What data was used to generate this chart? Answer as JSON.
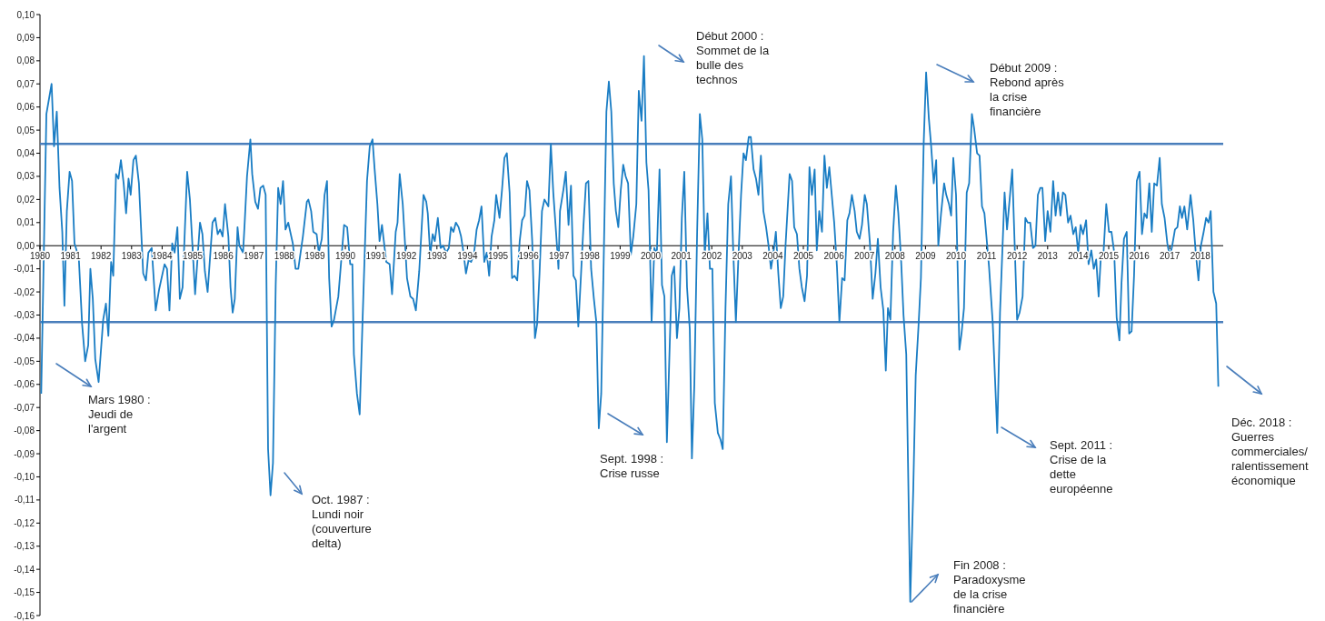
{
  "chart_data": {
    "type": "line",
    "xlim": [
      1980,
      2018.75
    ],
    "ylim": [
      -0.16,
      0.1
    ],
    "xticks": [
      1980,
      1981,
      1982,
      1983,
      1984,
      1985,
      1986,
      1987,
      1988,
      1989,
      1990,
      1991,
      1992,
      1993,
      1994,
      1995,
      1996,
      1997,
      1998,
      1999,
      2000,
      2001,
      2002,
      2003,
      2004,
      2005,
      2006,
      2007,
      2008,
      2009,
      2010,
      2011,
      2012,
      2013,
      2014,
      2015,
      2016,
      2017,
      2018
    ],
    "yticks": [
      {
        "value": 0.1,
        "label": "0,10"
      },
      {
        "value": 0.09,
        "label": "0,09"
      },
      {
        "value": 0.08,
        "label": "0,08"
      },
      {
        "value": 0.07,
        "label": "0,07"
      },
      {
        "value": 0.06,
        "label": "0,06"
      },
      {
        "value": 0.05,
        "label": "0,05"
      },
      {
        "value": 0.04,
        "label": "0,04"
      },
      {
        "value": 0.03,
        "label": "0,03"
      },
      {
        "value": 0.02,
        "label": "0,02"
      },
      {
        "value": 0.01,
        "label": "0,01"
      },
      {
        "value": 0,
        "label": "0,00"
      },
      {
        "value": -0.01,
        "label": "-0,01"
      },
      {
        "value": -0.02,
        "label": "-0,02"
      },
      {
        "value": -0.03,
        "label": "-0,03"
      },
      {
        "value": -0.04,
        "label": "-0,04"
      },
      {
        "value": -0.05,
        "label": "-0,05"
      },
      {
        "value": -0.06,
        "label": "-0,06"
      },
      {
        "value": -0.07,
        "label": "-0,07"
      },
      {
        "value": -0.08,
        "label": "-0,08"
      },
      {
        "value": -0.09,
        "label": "-0,09"
      },
      {
        "value": -0.1,
        "label": "-0,10"
      },
      {
        "value": -0.11,
        "label": "-0,11"
      },
      {
        "value": -0.12,
        "label": "-0,12"
      },
      {
        "value": -0.13,
        "label": "-0,13"
      },
      {
        "value": -0.14,
        "label": "-0,14"
      },
      {
        "value": -0.15,
        "label": "-0,15"
      },
      {
        "value": -0.16,
        "label": "-0,16"
      }
    ],
    "grid": false,
    "marker": "none",
    "line_style": "solid",
    "ref_lines": [
      {
        "axis": "y",
        "value": 0.044,
        "color": "#4a7ebb"
      },
      {
        "axis": "y",
        "value": -0.033,
        "color": "#4a7ebb"
      }
    ],
    "annotations": [
      "Mars 1980 :\nJeudi de\nl'argent",
      "Oct. 1987 :\nLundi noir\n(couverture\ndelta)",
      "Sept. 1998 :\nCrise russe",
      "Début 2000 :\nSommet de la\nbulle des\ntechnos",
      "Fin 2008 :\nParadoxysme\nde la crise\nfinancière",
      "Début 2009 :\nRebond après\nla crise\nfinancière",
      "Sept. 2011 :\nCrise de la\ndette\neuropéenne",
      "Déc. 2018 :\nGuerres\ncommerciales/\nralentissement\néconomique"
    ],
    "series": [
      {
        "color": "#1a7dc4",
        "x": [
          1980.04,
          1980.21,
          1980.38,
          1980.46,
          1980.55,
          1980.64,
          1980.73,
          1980.8,
          1980.88,
          1980.97,
          1981.05,
          1981.13,
          1981.27,
          1981.38,
          1981.48,
          1981.58,
          1981.65,
          1981.73,
          1981.81,
          1981.92,
          1982.07,
          1982.16,
          1982.24,
          1982.33,
          1982.4,
          1982.49,
          1982.57,
          1982.65,
          1982.74,
          1982.82,
          1982.9,
          1982.97,
          1983.06,
          1983.14,
          1983.24,
          1983.38,
          1983.47,
          1983.55,
          1983.66,
          1983.79,
          1983.9,
          1984.08,
          1984.16,
          1984.24,
          1984.33,
          1984.41,
          1984.5,
          1984.58,
          1984.67,
          1984.82,
          1984.91,
          1985.08,
          1985.24,
          1985.32,
          1985.4,
          1985.49,
          1985.65,
          1985.74,
          1985.82,
          1985.9,
          1985.98,
          1986.06,
          1986.17,
          1986.24,
          1986.31,
          1986.38,
          1986.47,
          1986.53,
          1986.65,
          1986.7,
          1986.78,
          1986.89,
          1986.95,
          1987.05,
          1987.14,
          1987.22,
          1987.31,
          1987.39,
          1987.47,
          1987.55,
          1987.63,
          1987.72,
          1987.8,
          1987.88,
          1987.96,
          1988.04,
          1988.13,
          1988.28,
          1988.37,
          1988.46,
          1988.61,
          1988.74,
          1988.79,
          1988.88,
          1988.95,
          1989.06,
          1989.13,
          1989.23,
          1989.32,
          1989.4,
          1989.47,
          1989.55,
          1989.63,
          1989.77,
          1989.96,
          1990.06,
          1990.16,
          1990.23,
          1990.28,
          1990.38,
          1990.47,
          1990.56,
          1990.71,
          1990.8,
          1990.89,
          1990.96,
          1991.05,
          1991.12,
          1991.2,
          1991.34,
          1991.45,
          1991.53,
          1991.65,
          1991.71,
          1991.78,
          1991.88,
          1992.02,
          1992.13,
          1992.22,
          1992.31,
          1992.42,
          1992.56,
          1992.65,
          1992.7,
          1992.78,
          1992.86,
          1992.93,
          1993.03,
          1993.12,
          1993.2,
          1993.3,
          1993.39,
          1993.46,
          1993.54,
          1993.62,
          1993.71,
          1993.79,
          1993.87,
          1993.95,
          1994.04,
          1994.12,
          1994.21,
          1994.3,
          1994.38,
          1994.46,
          1994.55,
          1994.63,
          1994.71,
          1994.79,
          1994.88,
          1994.94,
          1995.05,
          1995.13,
          1995.21,
          1995.29,
          1995.38,
          1995.46,
          1995.54,
          1995.63,
          1995.71,
          1995.79,
          1995.87,
          1995.95,
          1996.03,
          1996.12,
          1996.21,
          1996.28,
          1996.36,
          1996.44,
          1996.52,
          1996.65,
          1996.73,
          1996.81,
          1996.9,
          1996.98,
          1997.03,
          1997.14,
          1997.22,
          1997.31,
          1997.39,
          1997.47,
          1997.55,
          1997.63,
          1997.72,
          1997.8,
          1997.88,
          1997.96,
          1998.05,
          1998.14,
          1998.22,
          1998.3,
          1998.38,
          1998.46,
          1998.55,
          1998.63,
          1998.71,
          1998.79,
          1998.86,
          1998.94,
          1999.02,
          1999.1,
          1999.18,
          1999.26,
          1999.35,
          1999.43,
          1999.53,
          1999.61,
          1999.7,
          1999.78,
          1999.86,
          1999.93,
          2000.03,
          2000.12,
          2000.2,
          2000.29,
          2000.37,
          2000.45,
          2000.53,
          2000.69,
          2000.77,
          2000.86,
          2000.94,
          2001.02,
          2001.1,
          2001.19,
          2001.28,
          2001.35,
          2001.43,
          2001.52,
          2001.61,
          2001.69,
          2001.77,
          2001.86,
          2001.94,
          2002.02,
          2002.1,
          2002.2,
          2002.29,
          2002.36,
          2002.45,
          2002.54,
          2002.63,
          2002.7,
          2002.79,
          2002.87,
          2002.96,
          2003.04,
          2003.12,
          2003.21,
          2003.28,
          2003.37,
          2003.45,
          2003.53,
          2003.61,
          2003.69,
          2003.78,
          2003.86,
          2003.94,
          2004.02,
          2004.1,
          2004.18,
          2004.26,
          2004.34,
          2004.42,
          2004.55,
          2004.63,
          2004.7,
          2004.79,
          2004.87,
          2004.95,
          2005.04,
          2005.12,
          2005.2,
          2005.28,
          2005.37,
          2005.44,
          2005.52,
          2005.61,
          2005.69,
          2005.77,
          2005.85,
          2006.01,
          2006.1,
          2006.18,
          2006.27,
          2006.35,
          2006.44,
          2006.51,
          2006.59,
          2006.68,
          2006.75,
          2006.84,
          2006.92,
          2007.01,
          2007.08,
          2007.18,
          2007.27,
          2007.36,
          2007.44,
          2007.53,
          2007.62,
          2007.7,
          2007.77,
          2007.85,
          2007.94,
          2008.03,
          2008.11,
          2008.2,
          2008.28,
          2008.37,
          2008.5,
          2008.6,
          2008.68,
          2008.77,
          2008.85,
          2008.94,
          2009.02,
          2009.11,
          2009.18,
          2009.27,
          2009.35,
          2009.42,
          2009.51,
          2009.61,
          2009.68,
          2009.77,
          2009.84,
          2009.91,
          2010.0,
          2010.11,
          2010.18,
          2010.26,
          2010.35,
          2010.43,
          2010.52,
          2010.59,
          2010.69,
          2010.77,
          2010.85,
          2010.93,
          2011.08,
          2011.2,
          2011.35,
          2011.44,
          2011.59,
          2011.67,
          2011.84,
          2012.0,
          2012.08,
          2012.18,
          2012.27,
          2012.35,
          2012.43,
          2012.52,
          2012.6,
          2012.68,
          2012.76,
          2012.83,
          2012.92,
          2013.0,
          2013.09,
          2013.18,
          2013.26,
          2013.34,
          2013.42,
          2013.5,
          2013.58,
          2013.67,
          2013.75,
          2013.84,
          2013.92,
          2014.0,
          2014.08,
          2014.16,
          2014.26,
          2014.34,
          2014.43,
          2014.51,
          2014.59,
          2014.67,
          2014.75,
          2014.83,
          2014.92,
          2015.01,
          2015.09,
          2015.18,
          2015.26,
          2015.35,
          2015.42,
          2015.5,
          2015.59,
          2015.67,
          2015.75,
          2015.83,
          2015.92,
          2016.01,
          2016.09,
          2016.17,
          2016.25,
          2016.33,
          2016.41,
          2016.49,
          2016.58,
          2016.67,
          2016.74,
          2016.83,
          2016.92,
          2017.0,
          2017.08,
          2017.17,
          2017.25,
          2017.33,
          2017.4,
          2017.48,
          2017.57,
          2017.68,
          2017.77,
          2017.85,
          2017.94,
          2018.02,
          2018.11,
          2018.19,
          2018.27,
          2018.34,
          2018.43,
          2018.52,
          2018.59
        ],
        "values": [
          -0.064,
          0.057,
          0.07,
          0.043,
          0.058,
          0.025,
          0.006,
          -0.026,
          0.015,
          0.032,
          0.028,
          0.001,
          -0.005,
          -0.034,
          -0.05,
          -0.043,
          -0.01,
          -0.023,
          -0.049,
          -0.059,
          -0.032,
          -0.025,
          -0.039,
          -0.007,
          -0.013,
          0.031,
          0.029,
          0.037,
          0.027,
          0.014,
          0.029,
          0.022,
          0.037,
          0.039,
          0.027,
          -0.012,
          -0.015,
          -0.003,
          -0.001,
          -0.028,
          -0.019,
          -0.008,
          -0.01,
          -0.028,
          0.001,
          -0.003,
          0.008,
          -0.023,
          -0.018,
          0.032,
          0.02,
          -0.021,
          0.01,
          0.005,
          -0.011,
          -0.02,
          0.01,
          0.012,
          0.005,
          0.007,
          0.004,
          0.018,
          0.004,
          -0.018,
          -0.029,
          -0.023,
          0.008,
          0.0,
          -0.003,
          0.009,
          0.03,
          0.046,
          0.031,
          0.019,
          0.016,
          0.025,
          0.026,
          0.022,
          -0.088,
          -0.108,
          -0.094,
          -0.017,
          0.025,
          0.018,
          0.028,
          0.007,
          0.01,
          0.001,
          -0.01,
          -0.01,
          0.004,
          0.019,
          0.02,
          0.015,
          0.006,
          0.005,
          -0.003,
          0.003,
          0.022,
          0.028,
          -0.014,
          -0.035,
          -0.032,
          -0.022,
          0.009,
          0.008,
          -0.008,
          -0.008,
          -0.047,
          -0.064,
          -0.073,
          -0.034,
          0.028,
          0.043,
          0.046,
          0.033,
          0.018,
          0.002,
          0.009,
          -0.007,
          -0.008,
          -0.021,
          0.006,
          0.01,
          0.031,
          0.018,
          -0.014,
          -0.022,
          -0.023,
          -0.028,
          -0.011,
          0.022,
          0.019,
          0.014,
          -0.004,
          0.005,
          0.002,
          0.012,
          -0.001,
          0.0,
          -0.003,
          -0.001,
          0.008,
          0.006,
          0.01,
          0.008,
          0.004,
          -0.003,
          -0.012,
          -0.006,
          -0.007,
          -0.004,
          0.007,
          0.011,
          0.017,
          -0.007,
          -0.003,
          -0.013,
          0.004,
          0.011,
          0.022,
          0.012,
          0.024,
          0.038,
          0.04,
          0.023,
          -0.014,
          -0.013,
          -0.015,
          0.002,
          0.011,
          0.013,
          0.028,
          0.024,
          0.002,
          -0.04,
          -0.034,
          -0.012,
          0.015,
          0.02,
          0.017,
          0.044,
          0.023,
          0.006,
          -0.01,
          0.015,
          0.024,
          0.032,
          0.009,
          0.026,
          -0.013,
          -0.015,
          -0.035,
          -0.012,
          0.009,
          0.027,
          0.028,
          -0.01,
          -0.023,
          -0.033,
          -0.079,
          -0.064,
          -0.007,
          0.058,
          0.071,
          0.058,
          0.027,
          0.015,
          0.008,
          0.024,
          0.035,
          0.03,
          0.027,
          -0.004,
          0.004,
          0.018,
          0.067,
          0.054,
          0.082,
          0.036,
          0.024,
          -0.033,
          -0.001,
          -0.004,
          0.033,
          -0.017,
          -0.022,
          -0.085,
          -0.013,
          -0.009,
          -0.04,
          -0.027,
          0.012,
          0.032,
          -0.018,
          -0.036,
          -0.092,
          -0.06,
          0.005,
          0.057,
          0.046,
          -0.004,
          0.014,
          -0.01,
          -0.01,
          -0.068,
          -0.081,
          -0.084,
          -0.088,
          -0.027,
          0.018,
          0.03,
          -0.001,
          -0.033,
          -0.006,
          0.022,
          0.04,
          0.037,
          0.047,
          0.047,
          0.033,
          0.029,
          0.022,
          0.039,
          0.015,
          0.008,
          0.0,
          -0.01,
          -0.003,
          0.006,
          -0.012,
          -0.027,
          -0.022,
          0.001,
          0.031,
          0.028,
          0.008,
          0.005,
          -0.01,
          -0.018,
          -0.024,
          -0.013,
          0.034,
          0.022,
          0.033,
          -0.002,
          0.015,
          0.006,
          0.039,
          0.025,
          0.034,
          0.01,
          -0.009,
          -0.033,
          -0.014,
          -0.015,
          0.011,
          0.014,
          0.022,
          0.015,
          0.006,
          0.003,
          0.009,
          0.022,
          0.018,
          0.001,
          -0.023,
          -0.012,
          0.003,
          -0.018,
          -0.028,
          -0.054,
          -0.027,
          -0.032,
          0.006,
          0.026,
          0.014,
          -0.006,
          -0.03,
          -0.047,
          -0.154,
          -0.105,
          -0.056,
          -0.035,
          -0.014,
          0.044,
          0.075,
          0.055,
          0.044,
          0.027,
          0.037,
          0.0,
          0.014,
          0.027,
          0.022,
          0.018,
          0.013,
          0.038,
          0.022,
          -0.045,
          -0.038,
          -0.027,
          0.023,
          0.027,
          0.057,
          0.051,
          0.04,
          0.039,
          0.017,
          0.014,
          -0.009,
          -0.033,
          -0.081,
          -0.029,
          0.023,
          0.007,
          0.033,
          -0.032,
          -0.029,
          -0.022,
          0.012,
          0.01,
          0.01,
          -0.001,
          0.0,
          0.022,
          0.025,
          0.025,
          0.002,
          0.015,
          0.006,
          0.028,
          0.013,
          0.023,
          0.013,
          0.023,
          0.022,
          0.01,
          0.013,
          0.005,
          0.008,
          -0.003,
          0.009,
          0.005,
          0.011,
          -0.008,
          -0.002,
          -0.01,
          -0.006,
          -0.022,
          -0.003,
          -0.003,
          0.018,
          0.006,
          0.006,
          -0.003,
          -0.031,
          -0.041,
          -0.016,
          0.003,
          0.006,
          -0.038,
          -0.037,
          -0.013,
          0.028,
          0.032,
          0.005,
          0.014,
          0.012,
          0.027,
          0.006,
          0.027,
          0.026,
          0.038,
          0.018,
          0.012,
          0.001,
          -0.005,
          0.0,
          0.007,
          0.008,
          0.017,
          0.012,
          0.017,
          0.007,
          0.022,
          0.011,
          -0.003,
          -0.015,
          0.0,
          0.006,
          0.012,
          0.01,
          0.015,
          -0.02,
          -0.025,
          -0.061
        ]
      }
    ]
  }
}
